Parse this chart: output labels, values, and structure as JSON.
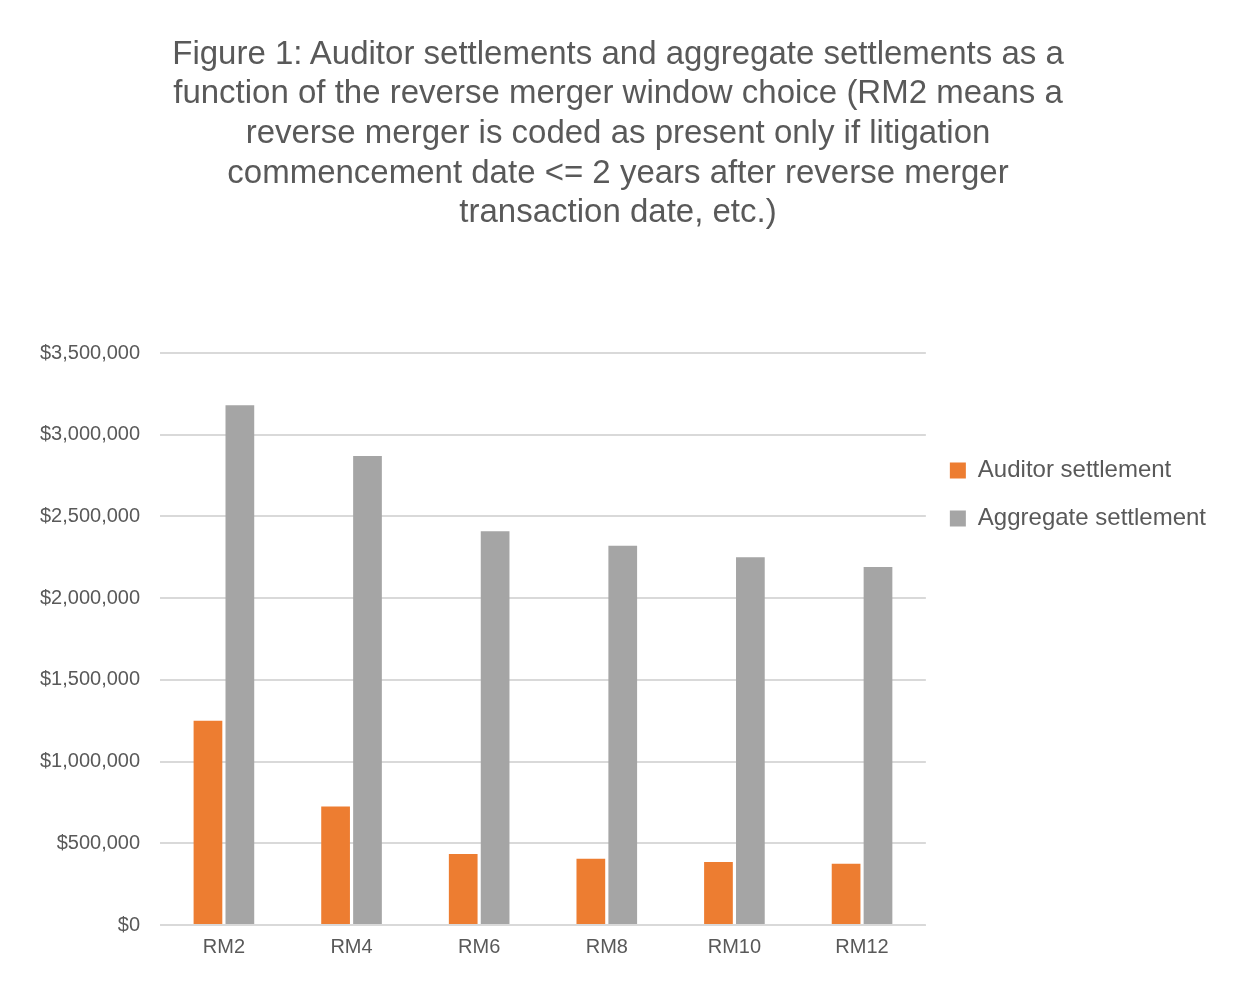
{
  "chart_data": {
    "type": "bar",
    "title": "Figure 1: Auditor settlements and aggregate settlements as a function of the reverse merger window choice (RM2 means a reverse merger is coded as present only if litigation commencement date <= 2 years after reverse merger transaction date, etc.)",
    "categories": [
      "RM2",
      "RM4",
      "RM6",
      "RM8",
      "RM10",
      "RM12"
    ],
    "series": [
      {
        "name": "Auditor settlement",
        "color": "#ed7d31",
        "values": [
          1250000,
          725000,
          435000,
          405000,
          385000,
          375000
        ]
      },
      {
        "name": "Aggregate settlement",
        "color": "#a5a5a5",
        "values": [
          3180000,
          2870000,
          2410000,
          2320000,
          2250000,
          2190000
        ]
      }
    ],
    "ylim": [
      0,
      3500000
    ],
    "yticks": [
      {
        "value": 0,
        "label": "$0"
      },
      {
        "value": 500000,
        "label": "$500,000"
      },
      {
        "value": 1000000,
        "label": "$1,000,000"
      },
      {
        "value": 1500000,
        "label": "$1,500,000"
      },
      {
        "value": 2000000,
        "label": "$2,000,000"
      },
      {
        "value": 2500000,
        "label": "$2,500,000"
      },
      {
        "value": 3000000,
        "label": "$3,000,000"
      },
      {
        "value": 3500000,
        "label": "$3,500,000"
      }
    ],
    "grid": "y",
    "legend": "right"
  }
}
